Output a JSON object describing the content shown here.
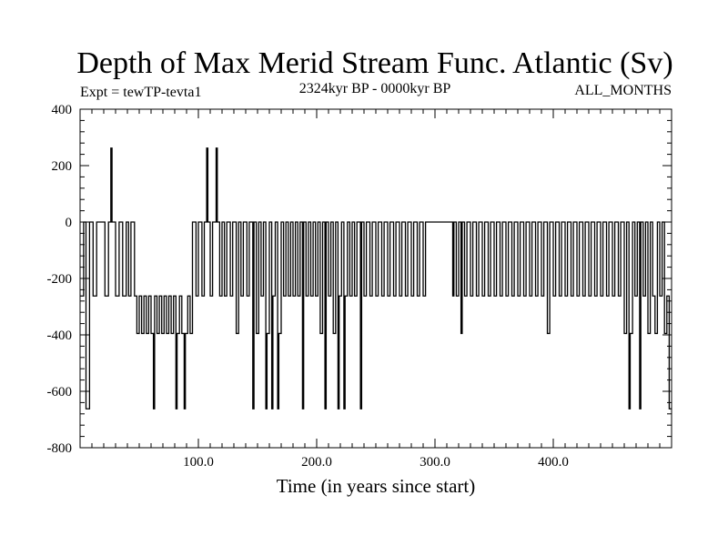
{
  "chart_data": {
    "type": "line",
    "title": "Depth of Max Merid Stream Func. Atlantic (Sv)",
    "subtitle_left": "Expt = tewTP-tevta1",
    "subtitle_center": "2324kyr BP - 0000kyr BP",
    "subtitle_right": "ALL_MONTHS",
    "xlabel": "Time (in years since start)",
    "ylabel": "",
    "xlim": [
      0,
      500
    ],
    "ylim": [
      -800,
      400
    ],
    "xticks": [
      100,
      200,
      300,
      400
    ],
    "xtick_labels": [
      "100.0",
      "200.0",
      "300.0",
      "400.0"
    ],
    "yticks": [
      400,
      200,
      0,
      -200,
      -400,
      -600,
      -800
    ],
    "ytick_labels": [
      "400",
      "200",
      "0",
      "-200",
      "-400",
      "-600",
      "-800"
    ],
    "grid": false,
    "series": [
      {
        "style": "step",
        "color": "#000000",
        "points": [
          [
            0,
            -262
          ],
          [
            3,
            0
          ],
          [
            5,
            -662
          ],
          [
            8,
            0
          ],
          [
            11,
            -262
          ],
          [
            14,
            0
          ],
          [
            19,
            0
          ],
          [
            21,
            -262
          ],
          [
            24,
            0
          ],
          [
            26,
            262
          ],
          [
            27,
            0
          ],
          [
            30,
            -262
          ],
          [
            33,
            0
          ],
          [
            36,
            -262
          ],
          [
            39,
            0
          ],
          [
            41,
            -262
          ],
          [
            43,
            0
          ],
          [
            46,
            -262
          ],
          [
            48,
            -395
          ],
          [
            50,
            -262
          ],
          [
            52,
            -395
          ],
          [
            54,
            -262
          ],
          [
            56,
            -395
          ],
          [
            58,
            -262
          ],
          [
            60,
            -395
          ],
          [
            62,
            -662
          ],
          [
            63,
            -262
          ],
          [
            65,
            -395
          ],
          [
            67,
            -262
          ],
          [
            69,
            -395
          ],
          [
            71,
            -262
          ],
          [
            73,
            -395
          ],
          [
            75,
            -262
          ],
          [
            77,
            -395
          ],
          [
            79,
            -262
          ],
          [
            81,
            -662
          ],
          [
            82,
            -395
          ],
          [
            84,
            -262
          ],
          [
            86,
            -395
          ],
          [
            88,
            -662
          ],
          [
            89,
            -395
          ],
          [
            91,
            -262
          ],
          [
            93,
            -395
          ],
          [
            95,
            0
          ],
          [
            98,
            -262
          ],
          [
            100,
            0
          ],
          [
            103,
            -262
          ],
          [
            105,
            0
          ],
          [
            107,
            262
          ],
          [
            108,
            0
          ],
          [
            110,
            -262
          ],
          [
            112,
            0
          ],
          [
            115,
            262
          ],
          [
            116,
            0
          ],
          [
            118,
            -262
          ],
          [
            120,
            0
          ],
          [
            122,
            -262
          ],
          [
            124,
            0
          ],
          [
            127,
            -262
          ],
          [
            129,
            0
          ],
          [
            132,
            -395
          ],
          [
            134,
            0
          ],
          [
            136,
            -262
          ],
          [
            138,
            0
          ],
          [
            141,
            -262
          ],
          [
            143,
            0
          ],
          [
            146,
            -662
          ],
          [
            147,
            0
          ],
          [
            149,
            -395
          ],
          [
            151,
            0
          ],
          [
            153,
            -262
          ],
          [
            155,
            0
          ],
          [
            157,
            -662
          ],
          [
            158,
            -395
          ],
          [
            160,
            0
          ],
          [
            162,
            -662
          ],
          [
            163,
            -262
          ],
          [
            165,
            0
          ],
          [
            167,
            -662
          ],
          [
            168,
            -395
          ],
          [
            170,
            0
          ],
          [
            172,
            -262
          ],
          [
            174,
            0
          ],
          [
            176,
            -262
          ],
          [
            178,
            0
          ],
          [
            180,
            -262
          ],
          [
            182,
            0
          ],
          [
            184,
            -262
          ],
          [
            186,
            0
          ],
          [
            188,
            -662
          ],
          [
            189,
            0
          ],
          [
            191,
            -262
          ],
          [
            193,
            0
          ],
          [
            195,
            -262
          ],
          [
            197,
            0
          ],
          [
            199,
            -262
          ],
          [
            201,
            0
          ],
          [
            203,
            -395
          ],
          [
            205,
            0
          ],
          [
            207,
            -662
          ],
          [
            208,
            0
          ],
          [
            210,
            -262
          ],
          [
            212,
            0
          ],
          [
            214,
            -395
          ],
          [
            216,
            0
          ],
          [
            218,
            -662
          ],
          [
            219,
            -262
          ],
          [
            221,
            0
          ],
          [
            223,
            -662
          ],
          [
            224,
            -262
          ],
          [
            226,
            0
          ],
          [
            228,
            -262
          ],
          [
            230,
            0
          ],
          [
            232,
            -262
          ],
          [
            234,
            0
          ],
          [
            237,
            -662
          ],
          [
            238,
            0
          ],
          [
            240,
            -262
          ],
          [
            242,
            0
          ],
          [
            245,
            -262
          ],
          [
            247,
            0
          ],
          [
            250,
            -262
          ],
          [
            252,
            0
          ],
          [
            255,
            -262
          ],
          [
            257,
            0
          ],
          [
            260,
            -262
          ],
          [
            262,
            0
          ],
          [
            265,
            -262
          ],
          [
            267,
            0
          ],
          [
            270,
            -262
          ],
          [
            272,
            0
          ],
          [
            275,
            -262
          ],
          [
            277,
            0
          ],
          [
            280,
            -262
          ],
          [
            282,
            0
          ],
          [
            285,
            -262
          ],
          [
            287,
            0
          ],
          [
            290,
            -262
          ],
          [
            292,
            0
          ],
          [
            315,
            -262
          ],
          [
            316,
            0
          ],
          [
            318,
            -262
          ],
          [
            320,
            0
          ],
          [
            322,
            -395
          ],
          [
            323,
            0
          ],
          [
            325,
            -262
          ],
          [
            327,
            0
          ],
          [
            330,
            -262
          ],
          [
            332,
            0
          ],
          [
            335,
            -262
          ],
          [
            337,
            0
          ],
          [
            340,
            -262
          ],
          [
            342,
            0
          ],
          [
            345,
            -262
          ],
          [
            347,
            0
          ],
          [
            350,
            -262
          ],
          [
            352,
            0
          ],
          [
            355,
            -262
          ],
          [
            357,
            0
          ],
          [
            360,
            -262
          ],
          [
            362,
            0
          ],
          [
            365,
            -262
          ],
          [
            367,
            0
          ],
          [
            370,
            -262
          ],
          [
            372,
            0
          ],
          [
            375,
            -262
          ],
          [
            377,
            0
          ],
          [
            380,
            -262
          ],
          [
            382,
            0
          ],
          [
            385,
            -262
          ],
          [
            387,
            0
          ],
          [
            390,
            -262
          ],
          [
            392,
            0
          ],
          [
            395,
            -395
          ],
          [
            397,
            0
          ],
          [
            400,
            -262
          ],
          [
            402,
            0
          ],
          [
            405,
            -262
          ],
          [
            407,
            0
          ],
          [
            410,
            -262
          ],
          [
            412,
            0
          ],
          [
            415,
            -262
          ],
          [
            417,
            0
          ],
          [
            420,
            -262
          ],
          [
            422,
            0
          ],
          [
            425,
            -262
          ],
          [
            427,
            0
          ],
          [
            430,
            -262
          ],
          [
            432,
            0
          ],
          [
            435,
            -262
          ],
          [
            437,
            0
          ],
          [
            440,
            -262
          ],
          [
            442,
            0
          ],
          [
            445,
            -262
          ],
          [
            447,
            0
          ],
          [
            450,
            -262
          ],
          [
            452,
            0
          ],
          [
            455,
            -262
          ],
          [
            457,
            0
          ],
          [
            460,
            -395
          ],
          [
            462,
            0
          ],
          [
            464,
            -662
          ],
          [
            465,
            -395
          ],
          [
            467,
            0
          ],
          [
            469,
            -262
          ],
          [
            471,
            0
          ],
          [
            473,
            -662
          ],
          [
            474,
            0
          ],
          [
            476,
            -262
          ],
          [
            478,
            0
          ],
          [
            480,
            -395
          ],
          [
            482,
            0
          ],
          [
            484,
            -262
          ],
          [
            486,
            -395
          ],
          [
            488,
            0
          ],
          [
            490,
            -262
          ],
          [
            492,
            0
          ],
          [
            494,
            -395
          ],
          [
            496,
            -262
          ],
          [
            498,
            -662
          ],
          [
            500,
            -662
          ]
        ]
      }
    ]
  }
}
